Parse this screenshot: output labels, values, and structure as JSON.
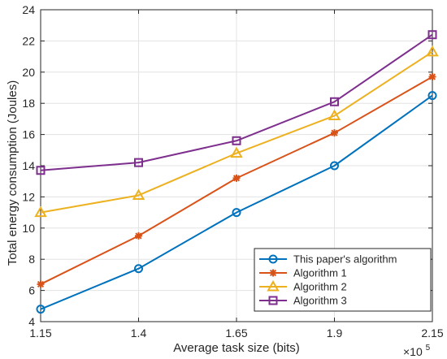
{
  "chart_data": {
    "type": "line",
    "xlabel": "Average task size (bits)",
    "ylabel": "Total energy consumption (Joules)",
    "x_multiplier_base": "×10",
    "x_multiplier_exp": "5",
    "x": [
      1.15,
      1.4,
      1.65,
      1.9,
      2.15
    ],
    "x_tick_labels": [
      "1.15",
      "1.4",
      "1.65",
      "1.9",
      "2.15"
    ],
    "xlim": [
      1.15,
      2.15
    ],
    "ylim": [
      4,
      24
    ],
    "y_ticks": [
      4,
      6,
      8,
      10,
      12,
      14,
      16,
      18,
      20,
      22,
      24
    ],
    "grid": true,
    "legend_location": "bottom-right",
    "series": [
      {
        "name": "This paper's algorithm",
        "color": "#0072BD",
        "marker": "circle",
        "values": [
          4.8,
          7.4,
          11.0,
          14.0,
          18.5
        ]
      },
      {
        "name": "Algorithm 1",
        "color": "#D95319",
        "marker": "asterisk",
        "values": [
          6.4,
          9.5,
          13.2,
          16.1,
          19.7
        ]
      },
      {
        "name": "Algorithm 2",
        "color": "#EDB120",
        "marker": "triangle",
        "values": [
          11.0,
          12.1,
          14.8,
          17.2,
          21.3
        ]
      },
      {
        "name": "Algorithm 3",
        "color": "#7E2F8E",
        "marker": "square",
        "values": [
          13.7,
          14.2,
          15.6,
          18.1,
          22.4
        ]
      }
    ]
  }
}
